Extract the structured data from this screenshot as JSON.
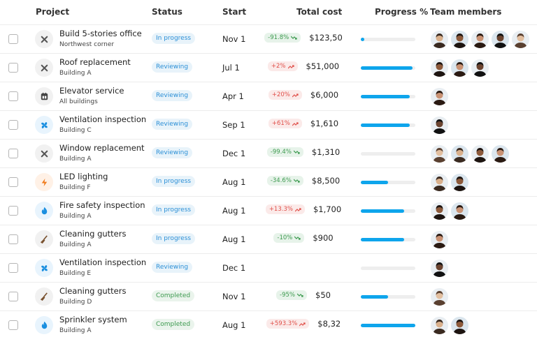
{
  "header": {
    "columns": [
      "Project",
      "Status",
      "Start",
      "Total cost",
      "Progress %",
      "Team members"
    ]
  },
  "table": {
    "rows": [
      {
        "project": "Build 5-stories office",
        "location": "Northwest corner",
        "status": "In progress",
        "status_color": "#2b8fd6",
        "start": "Nov 1",
        "change": "-91.8%",
        "change_color": "#3d9a4f",
        "cost": "$123,50",
        "progress": 6,
        "team_members": 5
      },
      {
        "project": "Roof replacement",
        "location": "Building A",
        "status": "Reviewing",
        "status_color": "#2b8fd6",
        "start": "Jul 1",
        "change": "+2%",
        "change_color": "#e0504a",
        "cost": "$51,000",
        "progress": 95,
        "team_members": 3
      },
      {
        "project": "Elevator service",
        "location": "All buildings",
        "status": "Reviewing",
        "status_color": "#2b8fd6",
        "start": "Apr 1",
        "change": "+20%",
        "change_color": "#e0504a",
        "cost": "$6,000",
        "progress": 90,
        "team_members": 1
      },
      {
        "project": "Ventilation inspection",
        "location": "Building C",
        "status": "Reviewing",
        "status_color": "#2b8fd6",
        "start": "Sep 1",
        "change": "+61%",
        "change_color": "#e0504a",
        "cost": "$1,610",
        "progress": 90,
        "team_members": 1
      },
      {
        "project": "Window replacement",
        "location": "Building A",
        "status": "Reviewing",
        "status_color": "#2b8fd6",
        "start": "Dec 1",
        "change": "-99.4%",
        "change_color": "#3d9a4f",
        "cost": "$1,310",
        "progress": 0,
        "team_members": 4
      },
      {
        "project": "LED lighting",
        "location": "Building F",
        "status": "In progress",
        "status_color": "#2b8fd6",
        "start": "Aug 1",
        "change": "-34.6%",
        "change_color": "#3d9a4f",
        "cost": "$8,500",
        "progress": 50,
        "team_members": 2
      },
      {
        "project": "Fire safety inspection",
        "location": "Building A",
        "status": "In progress",
        "status_color": "#2b8fd6",
        "start": "Aug 1",
        "change": "+13.3%",
        "change_color": "#e0504a",
        "cost": "$1,700",
        "progress": 80,
        "team_members": 2
      },
      {
        "project": "Cleaning gutters",
        "location": "Building A",
        "status": "In progress",
        "status_color": "#2b8fd6",
        "start": "Aug 1",
        "change": "-10%",
        "change_color": "#3d9a4f",
        "cost": "$900",
        "progress": 80,
        "team_members": 1
      },
      {
        "project": "Ventilation inspection",
        "location": "Building E",
        "status": "Reviewing",
        "status_color": "#2b8fd6",
        "start": "Dec 1",
        "change": null,
        "change_color": null,
        "cost": null,
        "progress": 0,
        "team_members": 1
      },
      {
        "project": "Cleaning gutters",
        "location": "Building D",
        "status": "Completed",
        "status_color": "#3d9a4f",
        "start": "Nov 1",
        "change": "-95%",
        "change_color": "#3d9a4f",
        "cost": "$50",
        "progress": 50,
        "team_members": 1
      },
      {
        "project": "Sprinkler system",
        "location": "Building A",
        "status": "Completed",
        "status_color": "#3d9a4f",
        "start": "Aug 1",
        "change": "+593.3%",
        "change_color": "#e0504a",
        "cost": "$8,32",
        "progress": 100,
        "team_members": 2
      }
    ]
  }
}
